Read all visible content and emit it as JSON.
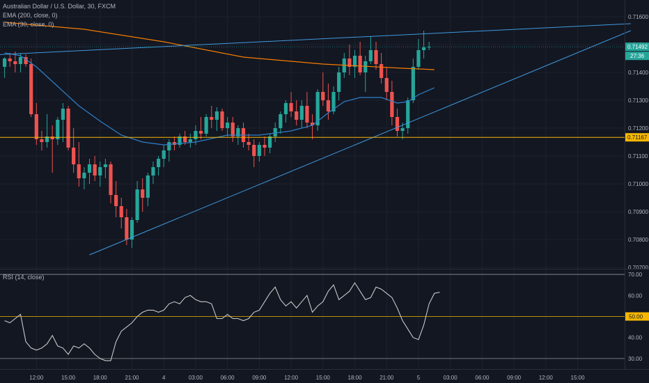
{
  "legend": {
    "symbol": "Australian Dollar / U.S. Dollar, 30, FXCM",
    "ema200": "EMA (200, close, 0)",
    "ema30": "EMA (30, close, 0)",
    "rsi": "RSI (14, close)"
  },
  "colors": {
    "bg": "#131722",
    "grid": "#1e222d",
    "up": "#26a69a",
    "down": "#ef5350",
    "ema200": "#f57c00",
    "ema30": "#2f80c8",
    "trend": "#3f9adf",
    "support": "#f5b700",
    "rsi": "#c8c8c8",
    "bands": "#c8c8c8",
    "mid": "#f5b700"
  },
  "chart_data": [
    {
      "type": "candlestick",
      "title": "Australian Dollar / U.S. Dollar, 30, FXCM",
      "ylim": [
        0.70695,
        0.7166
      ],
      "y_ticks": [
        "0.71600",
        "0.71500",
        "0.71400",
        "0.71300",
        "0.71200",
        "0.71100",
        "0.71000",
        "0.70900",
        "0.70800",
        "0.70700"
      ],
      "y_tick_values": [
        0.716,
        0.715,
        0.714,
        0.713,
        0.712,
        0.711,
        0.71,
        0.709,
        0.708,
        0.707
      ],
      "x_ticks": [
        "12:00",
        "15:00",
        "18:00",
        "21:00",
        "4",
        "03:00",
        "06:00",
        "09:00",
        "12:00",
        "15:00",
        "18:00",
        "21:00",
        "5",
        "03:00",
        "06:00",
        "09:00",
        "12:00",
        "15:00"
      ],
      "x_tick_index": [
        6,
        12,
        18,
        24,
        30,
        36,
        42,
        48,
        54,
        60,
        66,
        72,
        78,
        84,
        90,
        96,
        102,
        108
      ],
      "candles": [
        {
          "o": 0.7142,
          "h": 0.71455,
          "l": 0.7138,
          "c": 0.7145
        },
        {
          "o": 0.7145,
          "h": 0.7147,
          "l": 0.7142,
          "c": 0.7144
        },
        {
          "o": 0.7144,
          "h": 0.71475,
          "l": 0.714,
          "c": 0.7143
        },
        {
          "o": 0.7143,
          "h": 0.7147,
          "l": 0.714,
          "c": 0.71455
        },
        {
          "o": 0.71455,
          "h": 0.71465,
          "l": 0.7142,
          "c": 0.7143
        },
        {
          "o": 0.7143,
          "h": 0.7145,
          "l": 0.7124,
          "c": 0.7125
        },
        {
          "o": 0.7125,
          "h": 0.7129,
          "l": 0.7114,
          "c": 0.7116
        },
        {
          "o": 0.7116,
          "h": 0.7119,
          "l": 0.7112,
          "c": 0.7115
        },
        {
          "o": 0.7115,
          "h": 0.7125,
          "l": 0.7113,
          "c": 0.7117
        },
        {
          "o": 0.7117,
          "h": 0.7121,
          "l": 0.7104,
          "c": 0.7116
        },
        {
          "o": 0.7116,
          "h": 0.7124,
          "l": 0.7114,
          "c": 0.7123
        },
        {
          "o": 0.7123,
          "h": 0.7129,
          "l": 0.7115,
          "c": 0.7127
        },
        {
          "o": 0.7127,
          "h": 0.7128,
          "l": 0.7112,
          "c": 0.7113
        },
        {
          "o": 0.7113,
          "h": 0.712,
          "l": 0.7104,
          "c": 0.7107
        },
        {
          "o": 0.7107,
          "h": 0.7115,
          "l": 0.7099,
          "c": 0.7102
        },
        {
          "o": 0.7102,
          "h": 0.7106,
          "l": 0.7098,
          "c": 0.7104
        },
        {
          "o": 0.7104,
          "h": 0.7109,
          "l": 0.71,
          "c": 0.7107
        },
        {
          "o": 0.7107,
          "h": 0.711,
          "l": 0.7101,
          "c": 0.7103
        },
        {
          "o": 0.7103,
          "h": 0.7108,
          "l": 0.7099,
          "c": 0.7106
        },
        {
          "o": 0.7106,
          "h": 0.7109,
          "l": 0.7102,
          "c": 0.7107
        },
        {
          "o": 0.7107,
          "h": 0.7108,
          "l": 0.7093,
          "c": 0.7096
        },
        {
          "o": 0.7096,
          "h": 0.7101,
          "l": 0.7088,
          "c": 0.7092
        },
        {
          "o": 0.7092,
          "h": 0.7095,
          "l": 0.7084,
          "c": 0.7088
        },
        {
          "o": 0.7088,
          "h": 0.7091,
          "l": 0.7078,
          "c": 0.708
        },
        {
          "o": 0.708,
          "h": 0.7088,
          "l": 0.7077,
          "c": 0.7087
        },
        {
          "o": 0.7087,
          "h": 0.7101,
          "l": 0.7086,
          "c": 0.7098
        },
        {
          "o": 0.7098,
          "h": 0.7102,
          "l": 0.709,
          "c": 0.7095
        },
        {
          "o": 0.7095,
          "h": 0.7104,
          "l": 0.7092,
          "c": 0.7103
        },
        {
          "o": 0.7103,
          "h": 0.7108,
          "l": 0.71,
          "c": 0.7106
        },
        {
          "o": 0.7106,
          "h": 0.711,
          "l": 0.7103,
          "c": 0.7109
        },
        {
          "o": 0.7109,
          "h": 0.7114,
          "l": 0.7106,
          "c": 0.7112
        },
        {
          "o": 0.7112,
          "h": 0.7116,
          "l": 0.7108,
          "c": 0.7115
        },
        {
          "o": 0.7115,
          "h": 0.7117,
          "l": 0.7112,
          "c": 0.7114
        },
        {
          "o": 0.7114,
          "h": 0.7118,
          "l": 0.7113,
          "c": 0.7117
        },
        {
          "o": 0.7117,
          "h": 0.7119,
          "l": 0.7114,
          "c": 0.7115
        },
        {
          "o": 0.7115,
          "h": 0.7118,
          "l": 0.7113,
          "c": 0.7116
        },
        {
          "o": 0.7116,
          "h": 0.7121,
          "l": 0.7114,
          "c": 0.7119
        },
        {
          "o": 0.7119,
          "h": 0.7124,
          "l": 0.7116,
          "c": 0.7118
        },
        {
          "o": 0.7118,
          "h": 0.7125,
          "l": 0.7117,
          "c": 0.7124
        },
        {
          "o": 0.7124,
          "h": 0.7128,
          "l": 0.712,
          "c": 0.7123
        },
        {
          "o": 0.7123,
          "h": 0.71275,
          "l": 0.7119,
          "c": 0.7126
        },
        {
          "o": 0.7126,
          "h": 0.7127,
          "l": 0.7119,
          "c": 0.712
        },
        {
          "o": 0.712,
          "h": 0.7124,
          "l": 0.7117,
          "c": 0.7122
        },
        {
          "o": 0.7122,
          "h": 0.7124,
          "l": 0.7115,
          "c": 0.7117
        },
        {
          "o": 0.7117,
          "h": 0.7121,
          "l": 0.7114,
          "c": 0.712
        },
        {
          "o": 0.712,
          "h": 0.7122,
          "l": 0.7113,
          "c": 0.7115
        },
        {
          "o": 0.7115,
          "h": 0.7118,
          "l": 0.7112,
          "c": 0.7114
        },
        {
          "o": 0.7114,
          "h": 0.7116,
          "l": 0.7106,
          "c": 0.711
        },
        {
          "o": 0.711,
          "h": 0.7115,
          "l": 0.7108,
          "c": 0.7114
        },
        {
          "o": 0.7114,
          "h": 0.7117,
          "l": 0.711,
          "c": 0.7113
        },
        {
          "o": 0.7113,
          "h": 0.7118,
          "l": 0.7111,
          "c": 0.7117
        },
        {
          "o": 0.7117,
          "h": 0.7122,
          "l": 0.7115,
          "c": 0.712
        },
        {
          "o": 0.712,
          "h": 0.7126,
          "l": 0.7118,
          "c": 0.7125
        },
        {
          "o": 0.7125,
          "h": 0.713,
          "l": 0.7122,
          "c": 0.7129
        },
        {
          "o": 0.7129,
          "h": 0.7133,
          "l": 0.7124,
          "c": 0.7126
        },
        {
          "o": 0.7126,
          "h": 0.713,
          "l": 0.7121,
          "c": 0.7123
        },
        {
          "o": 0.7123,
          "h": 0.713,
          "l": 0.712,
          "c": 0.7128
        },
        {
          "o": 0.7128,
          "h": 0.7133,
          "l": 0.712,
          "c": 0.7122
        },
        {
          "o": 0.7122,
          "h": 0.7125,
          "l": 0.7116,
          "c": 0.7121
        },
        {
          "o": 0.7121,
          "h": 0.7134,
          "l": 0.7119,
          "c": 0.7133
        },
        {
          "o": 0.7133,
          "h": 0.714,
          "l": 0.7128,
          "c": 0.713
        },
        {
          "o": 0.713,
          "h": 0.7136,
          "l": 0.7123,
          "c": 0.7126
        },
        {
          "o": 0.7126,
          "h": 0.7135,
          "l": 0.7125,
          "c": 0.7133
        },
        {
          "o": 0.7133,
          "h": 0.7142,
          "l": 0.713,
          "c": 0.714
        },
        {
          "o": 0.714,
          "h": 0.7147,
          "l": 0.7138,
          "c": 0.7145
        },
        {
          "o": 0.7145,
          "h": 0.715,
          "l": 0.7139,
          "c": 0.7142
        },
        {
          "o": 0.7142,
          "h": 0.7148,
          "l": 0.7138,
          "c": 0.7146
        },
        {
          "o": 0.7146,
          "h": 0.7151,
          "l": 0.7139,
          "c": 0.714
        },
        {
          "o": 0.714,
          "h": 0.7146,
          "l": 0.7133,
          "c": 0.7144
        },
        {
          "o": 0.7144,
          "h": 0.7153,
          "l": 0.7143,
          "c": 0.7148
        },
        {
          "o": 0.7148,
          "h": 0.7151,
          "l": 0.7141,
          "c": 0.7143
        },
        {
          "o": 0.7143,
          "h": 0.7147,
          "l": 0.7136,
          "c": 0.7138
        },
        {
          "o": 0.7138,
          "h": 0.7142,
          "l": 0.713,
          "c": 0.7133
        },
        {
          "o": 0.7133,
          "h": 0.7137,
          "l": 0.7121,
          "c": 0.7124
        },
        {
          "o": 0.7124,
          "h": 0.7127,
          "l": 0.7117,
          "c": 0.7119
        },
        {
          "o": 0.7119,
          "h": 0.7122,
          "l": 0.7116,
          "c": 0.712
        },
        {
          "o": 0.712,
          "h": 0.7131,
          "l": 0.7118,
          "c": 0.713
        },
        {
          "o": 0.713,
          "h": 0.7145,
          "l": 0.7129,
          "c": 0.7142
        },
        {
          "o": 0.7142,
          "h": 0.7152,
          "l": 0.7141,
          "c": 0.7148
        },
        {
          "o": 0.7148,
          "h": 0.7155,
          "l": 0.7145,
          "c": 0.7149
        },
        {
          "o": 0.7149,
          "h": 0.7151,
          "l": 0.7148,
          "c": 0.71492
        }
      ],
      "ema200": [
        [
          0,
          0.7158
        ],
        [
          15,
          0.71555
        ],
        [
          30,
          0.7151
        ],
        [
          45,
          0.71455
        ],
        [
          60,
          0.7143
        ],
        [
          75,
          0.71415
        ],
        [
          81,
          0.7141
        ]
      ],
      "ema30": [
        [
          0,
          0.7147
        ],
        [
          3,
          0.7146
        ],
        [
          6,
          0.7142
        ],
        [
          10,
          0.7135
        ],
        [
          14,
          0.7128
        ],
        [
          18,
          0.71225
        ],
        [
          22,
          0.71175
        ],
        [
          26,
          0.7115
        ],
        [
          30,
          0.7114
        ],
        [
          36,
          0.7115
        ],
        [
          42,
          0.71175
        ],
        [
          48,
          0.71175
        ],
        [
          54,
          0.7119
        ],
        [
          58,
          0.7121
        ],
        [
          61,
          0.71255
        ],
        [
          64,
          0.71295
        ],
        [
          67,
          0.7131
        ],
        [
          69,
          0.7131
        ],
        [
          71,
          0.7131
        ],
        [
          74,
          0.7129
        ],
        [
          76,
          0.71295
        ],
        [
          78,
          0.7132
        ],
        [
          81,
          0.71345
        ]
      ],
      "resistance_line": [
        [
          -1,
          0.71464
        ],
        [
          118,
          0.71575
        ]
      ],
      "support_line": [
        [
          16,
          0.70745
        ],
        [
          118,
          0.7155
        ]
      ],
      "support_level": 0.71167,
      "last_price": "0.71492",
      "countdown": "27:36",
      "support_level_label": "0.71167"
    },
    {
      "type": "line",
      "title": "RSI (14, close)",
      "ylim": [
        25,
        72
      ],
      "y_ticks": [
        "70.00",
        "60.00",
        "50.00",
        "40.00",
        "30.00"
      ],
      "y_tick_values": [
        70,
        60,
        50,
        40,
        30
      ],
      "upper_band": 70,
      "lower_band": 30,
      "midline": 50,
      "midline_label": "50.00",
      "values": [
        48,
        47,
        49,
        51,
        38,
        35,
        34,
        35,
        37,
        41,
        36,
        35,
        32,
        36,
        35,
        37,
        35,
        32,
        30,
        29,
        29,
        38,
        43,
        45,
        47,
        50,
        52,
        53,
        53,
        52,
        53,
        56,
        57,
        56,
        59,
        60,
        58,
        57,
        57,
        56,
        49,
        49,
        51,
        49,
        49,
        48,
        49,
        52,
        53,
        57,
        61,
        64,
        58,
        55,
        57,
        54,
        57,
        60,
        52,
        55,
        57,
        62,
        65,
        58,
        60,
        62,
        66,
        62,
        58,
        59,
        64,
        63,
        61,
        59,
        54,
        48,
        44,
        40,
        39,
        46,
        56,
        61,
        61.5
      ]
    }
  ]
}
